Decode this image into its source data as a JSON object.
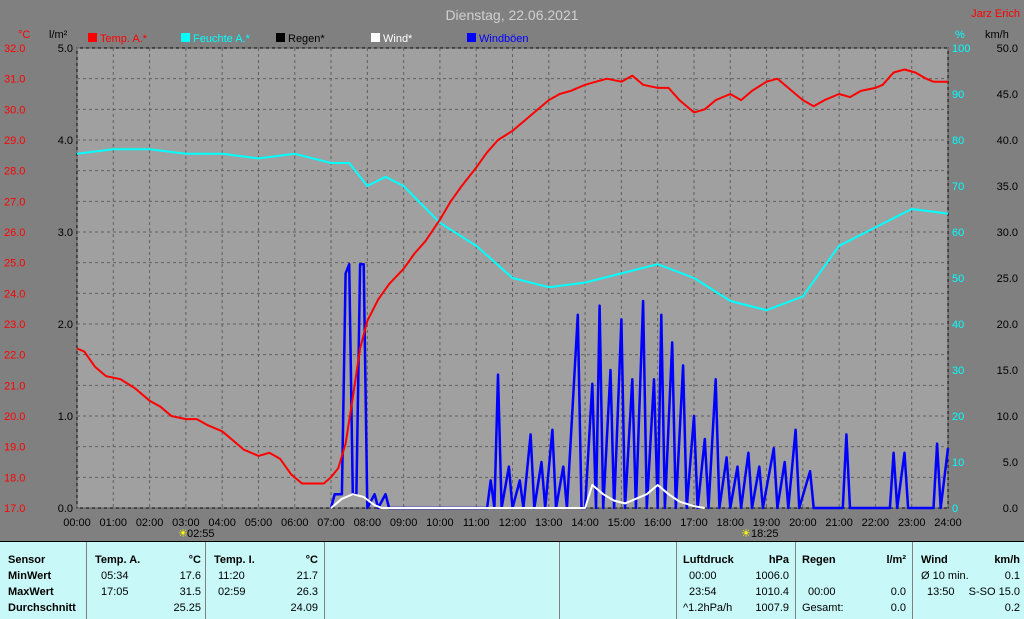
{
  "title": "Dienstag, 22.06.2021",
  "author": "Jarz Erich",
  "axes": {
    "left_unit": "°C",
    "left2_unit": "l/m²",
    "right_unit": "%",
    "right2_unit": "km/h",
    "temp_ticks": [
      "32.0",
      "31.0",
      "30.0",
      "29.0",
      "28.0",
      "27.0",
      "26.0",
      "25.0",
      "24.0",
      "23.0",
      "22.0",
      "21.0",
      "20.0",
      "19.0",
      "18.0",
      "17.0"
    ],
    "rain_ticks": [
      "5.0",
      "4.0",
      "3.0",
      "2.0",
      "1.0",
      "0.0"
    ],
    "hum_ticks": [
      "100",
      "90",
      "80",
      "70",
      "60",
      "50",
      "40",
      "30",
      "20",
      "10",
      "0"
    ],
    "wind_ticks": [
      "50.0",
      "45.0",
      "40.0",
      "35.0",
      "30.0",
      "25.0",
      "20.0",
      "15.0",
      "10.0",
      "5.0",
      "0.0"
    ],
    "x_ticks": [
      "00:00",
      "01:00",
      "02:00",
      "03:00",
      "04:00",
      "05:00",
      "06:00",
      "07:00",
      "08:00",
      "09:00",
      "10:00",
      "11:00",
      "12:00",
      "13:00",
      "14:00",
      "15:00",
      "16:00",
      "17:00",
      "18:00",
      "19:00",
      "20:00",
      "21:00",
      "22:00",
      "23:00",
      "24:00"
    ]
  },
  "legend": [
    {
      "label": "Temp. A.*",
      "color": "#ff0000"
    },
    {
      "label": "Feuchte A.*",
      "color": "#00ffff"
    },
    {
      "label": "Regen*",
      "color": "#000000"
    },
    {
      "label": "Wind*",
      "color": "#ffffff"
    },
    {
      "label": "Windböen",
      "color": "#0000ff"
    }
  ],
  "sun": {
    "sunrise": "02:55",
    "sunset": "18:25"
  },
  "chart_data": {
    "type": "line",
    "title": "Dienstag, 22.06.2021",
    "x_unit": "hour",
    "xlim": [
      0,
      24
    ],
    "temp_lim": [
      17,
      32
    ],
    "rain_lim": [
      0,
      5
    ],
    "hum_lim": [
      0,
      100
    ],
    "wind_lim": [
      0,
      50
    ],
    "grid": true,
    "legend_position": "top",
    "series": [
      {
        "name": "Temp. A.*",
        "axis": "temp",
        "color": "#ff0000",
        "points": [
          [
            0,
            22.2
          ],
          [
            0.2,
            22.1
          ],
          [
            0.5,
            21.6
          ],
          [
            0.8,
            21.3
          ],
          [
            1.2,
            21.2
          ],
          [
            1.6,
            20.9
          ],
          [
            2.0,
            20.5
          ],
          [
            2.3,
            20.3
          ],
          [
            2.6,
            20.0
          ],
          [
            3.0,
            19.9
          ],
          [
            3.3,
            19.9
          ],
          [
            3.6,
            19.7
          ],
          [
            4.0,
            19.5
          ],
          [
            4.3,
            19.2
          ],
          [
            4.6,
            18.9
          ],
          [
            5.0,
            18.7
          ],
          [
            5.3,
            18.8
          ],
          [
            5.6,
            18.6
          ],
          [
            5.9,
            18.1
          ],
          [
            6.2,
            17.8
          ],
          [
            6.5,
            17.8
          ],
          [
            6.8,
            17.8
          ],
          [
            7.0,
            18.0
          ],
          [
            7.2,
            18.3
          ],
          [
            7.4,
            19.1
          ],
          [
            7.6,
            20.6
          ],
          [
            7.8,
            22.2
          ],
          [
            8.0,
            23.1
          ],
          [
            8.3,
            23.8
          ],
          [
            8.6,
            24.3
          ],
          [
            9.0,
            24.8
          ],
          [
            9.3,
            25.3
          ],
          [
            9.6,
            25.7
          ],
          [
            10.0,
            26.4
          ],
          [
            10.3,
            27.0
          ],
          [
            10.6,
            27.5
          ],
          [
            11.0,
            28.1
          ],
          [
            11.3,
            28.6
          ],
          [
            11.6,
            29.0
          ],
          [
            12.0,
            29.3
          ],
          [
            12.3,
            29.6
          ],
          [
            12.6,
            29.9
          ],
          [
            13.0,
            30.3
          ],
          [
            13.3,
            30.5
          ],
          [
            13.6,
            30.6
          ],
          [
            14.0,
            30.8
          ],
          [
            14.3,
            30.9
          ],
          [
            14.6,
            31.0
          ],
          [
            15.0,
            30.9
          ],
          [
            15.3,
            31.1
          ],
          [
            15.6,
            30.8
          ],
          [
            16.0,
            30.7
          ],
          [
            16.3,
            30.7
          ],
          [
            16.6,
            30.3
          ],
          [
            17.0,
            29.9
          ],
          [
            17.3,
            30.0
          ],
          [
            17.6,
            30.3
          ],
          [
            18.0,
            30.5
          ],
          [
            18.3,
            30.3
          ],
          [
            18.6,
            30.6
          ],
          [
            19.0,
            30.9
          ],
          [
            19.3,
            31.0
          ],
          [
            19.6,
            30.7
          ],
          [
            20.0,
            30.3
          ],
          [
            20.3,
            30.1
          ],
          [
            20.6,
            30.3
          ],
          [
            21.0,
            30.5
          ],
          [
            21.3,
            30.4
          ],
          [
            21.6,
            30.6
          ],
          [
            22.0,
            30.7
          ],
          [
            22.2,
            30.8
          ],
          [
            22.5,
            31.2
          ],
          [
            22.8,
            31.3
          ],
          [
            23.1,
            31.2
          ],
          [
            23.4,
            31.0
          ],
          [
            23.6,
            30.9
          ],
          [
            24.0,
            30.9
          ]
        ]
      },
      {
        "name": "Feuchte A.*",
        "axis": "hum",
        "color": "#00ffff",
        "points": [
          [
            0,
            77
          ],
          [
            1,
            78
          ],
          [
            2,
            78
          ],
          [
            3,
            77
          ],
          [
            4,
            77
          ],
          [
            5,
            76
          ],
          [
            6,
            77
          ],
          [
            7,
            75
          ],
          [
            7.5,
            75
          ],
          [
            8,
            70
          ],
          [
            8.5,
            72
          ],
          [
            9,
            70
          ],
          [
            10,
            62
          ],
          [
            11,
            57
          ],
          [
            12,
            50
          ],
          [
            13,
            48
          ],
          [
            14,
            49
          ],
          [
            15,
            51
          ],
          [
            16,
            53
          ],
          [
            17,
            50
          ],
          [
            18,
            45
          ],
          [
            19,
            43
          ],
          [
            20,
            46
          ],
          [
            21,
            57
          ],
          [
            22,
            61
          ],
          [
            23,
            65
          ],
          [
            24,
            64
          ]
        ]
      },
      {
        "name": "Wind*",
        "axis": "wind",
        "color": "#ffffff",
        "points": [
          [
            7.0,
            0
          ],
          [
            7.3,
            1.0
          ],
          [
            7.6,
            1.5
          ],
          [
            7.9,
            1.2
          ],
          [
            8.2,
            0.3
          ],
          [
            8.4,
            0
          ],
          [
            14.0,
            0
          ],
          [
            14.2,
            2.5
          ],
          [
            14.5,
            1.5
          ],
          [
            14.8,
            0.8
          ],
          [
            15.1,
            0.5
          ],
          [
            15.4,
            1.0
          ],
          [
            15.7,
            1.5
          ],
          [
            16.0,
            2.5
          ],
          [
            16.3,
            1.5
          ],
          [
            16.6,
            0.7
          ],
          [
            17.0,
            0.2
          ],
          [
            17.3,
            0
          ]
        ]
      },
      {
        "name": "Windböen",
        "axis": "wind",
        "color": "#0000ff",
        "points": [
          [
            7.0,
            0
          ],
          [
            7.1,
            1.5
          ],
          [
            7.3,
            1.5
          ],
          [
            7.4,
            25.5
          ],
          [
            7.5,
            26.5
          ],
          [
            7.6,
            1.5
          ],
          [
            7.7,
            1.5
          ],
          [
            7.8,
            26.5
          ],
          [
            7.9,
            26.5
          ],
          [
            8.0,
            0
          ],
          [
            8.2,
            1.5
          ],
          [
            8.3,
            0
          ],
          [
            8.5,
            1.5
          ],
          [
            8.6,
            0
          ],
          [
            11.3,
            0
          ],
          [
            11.4,
            3.0
          ],
          [
            11.5,
            0
          ],
          [
            11.6,
            14.5
          ],
          [
            11.7,
            0
          ],
          [
            11.9,
            4.5
          ],
          [
            12.0,
            0
          ],
          [
            12.2,
            3.0
          ],
          [
            12.3,
            0
          ],
          [
            12.5,
            8.0
          ],
          [
            12.6,
            0
          ],
          [
            12.8,
            5.0
          ],
          [
            12.9,
            0
          ],
          [
            13.1,
            8.5
          ],
          [
            13.2,
            0
          ],
          [
            13.4,
            4.5
          ],
          [
            13.5,
            0
          ],
          [
            13.8,
            21.0
          ],
          [
            13.9,
            0
          ],
          [
            14.0,
            0
          ],
          [
            14.2,
            13.5
          ],
          [
            14.3,
            0
          ],
          [
            14.4,
            22.0
          ],
          [
            14.5,
            0
          ],
          [
            14.7,
            15.0
          ],
          [
            14.8,
            0
          ],
          [
            15.0,
            20.5
          ],
          [
            15.1,
            0
          ],
          [
            15.3,
            14.0
          ],
          [
            15.4,
            0
          ],
          [
            15.6,
            22.5
          ],
          [
            15.7,
            0
          ],
          [
            15.9,
            14.0
          ],
          [
            16.0,
            0
          ],
          [
            16.1,
            21.0
          ],
          [
            16.2,
            0
          ],
          [
            16.4,
            18.0
          ],
          [
            16.5,
            0
          ],
          [
            16.7,
            15.5
          ],
          [
            16.8,
            0
          ],
          [
            17.0,
            10.0
          ],
          [
            17.1,
            0
          ],
          [
            17.3,
            7.5
          ],
          [
            17.4,
            0
          ],
          [
            17.6,
            14.0
          ],
          [
            17.7,
            0
          ],
          [
            17.9,
            5.5
          ],
          [
            18.0,
            0
          ],
          [
            18.2,
            4.5
          ],
          [
            18.3,
            0
          ],
          [
            18.5,
            6.0
          ],
          [
            18.6,
            0
          ],
          [
            18.8,
            4.5
          ],
          [
            18.9,
            0
          ],
          [
            19.2,
            6.5
          ],
          [
            19.3,
            0
          ],
          [
            19.5,
            5.0
          ],
          [
            19.6,
            0
          ],
          [
            19.8,
            8.5
          ],
          [
            19.9,
            0
          ],
          [
            20.2,
            4.0
          ],
          [
            20.3,
            0
          ],
          [
            21.1,
            0
          ],
          [
            21.2,
            8.0
          ],
          [
            21.3,
            0
          ],
          [
            22.4,
            0
          ],
          [
            22.5,
            6.0
          ],
          [
            22.6,
            0
          ],
          [
            22.8,
            6.0
          ],
          [
            22.9,
            0
          ],
          [
            23.6,
            0
          ],
          [
            23.7,
            7.0
          ],
          [
            23.8,
            0
          ],
          [
            24.0,
            6.5
          ]
        ]
      }
    ]
  },
  "table": {
    "sensor": {
      "header": "Sensor",
      "rows": [
        "MinWert",
        "MaxWert",
        "Durchschnitt"
      ]
    },
    "temp_a": {
      "header": "Temp. A.",
      "unit": "°C",
      "rows": [
        [
          "05:34",
          "17.6"
        ],
        [
          "17:05",
          "31.5"
        ],
        [
          "",
          "25.25"
        ]
      ]
    },
    "temp_i": {
      "header": "Temp. I.",
      "unit": "°C",
      "rows": [
        [
          "11:20",
          "21.7"
        ],
        [
          "02:59",
          "26.3"
        ],
        [
          "",
          "24.09"
        ]
      ]
    },
    "luftdruck": {
      "header": "Luftdruck",
      "unit": "hPa",
      "rows": [
        [
          "00:00",
          "1006.0"
        ],
        [
          "23:54",
          "1010.4"
        ],
        [
          "^1.2hPa/h",
          "1007.9"
        ]
      ]
    },
    "regen": {
      "header": "Regen",
      "unit": "l/m²",
      "rows": [
        [
          "",
          ""
        ],
        [
          "00:00",
          "0.0"
        ],
        [
          "Gesamt:",
          "0.0"
        ]
      ]
    },
    "wind": {
      "header": "Wind",
      "unit": "km/h",
      "rows": [
        [
          "Ø 10 min.",
          "0.1"
        ],
        [
          "13:50",
          "S-SO 15.0"
        ],
        [
          "",
          "0.2"
        ]
      ]
    }
  }
}
